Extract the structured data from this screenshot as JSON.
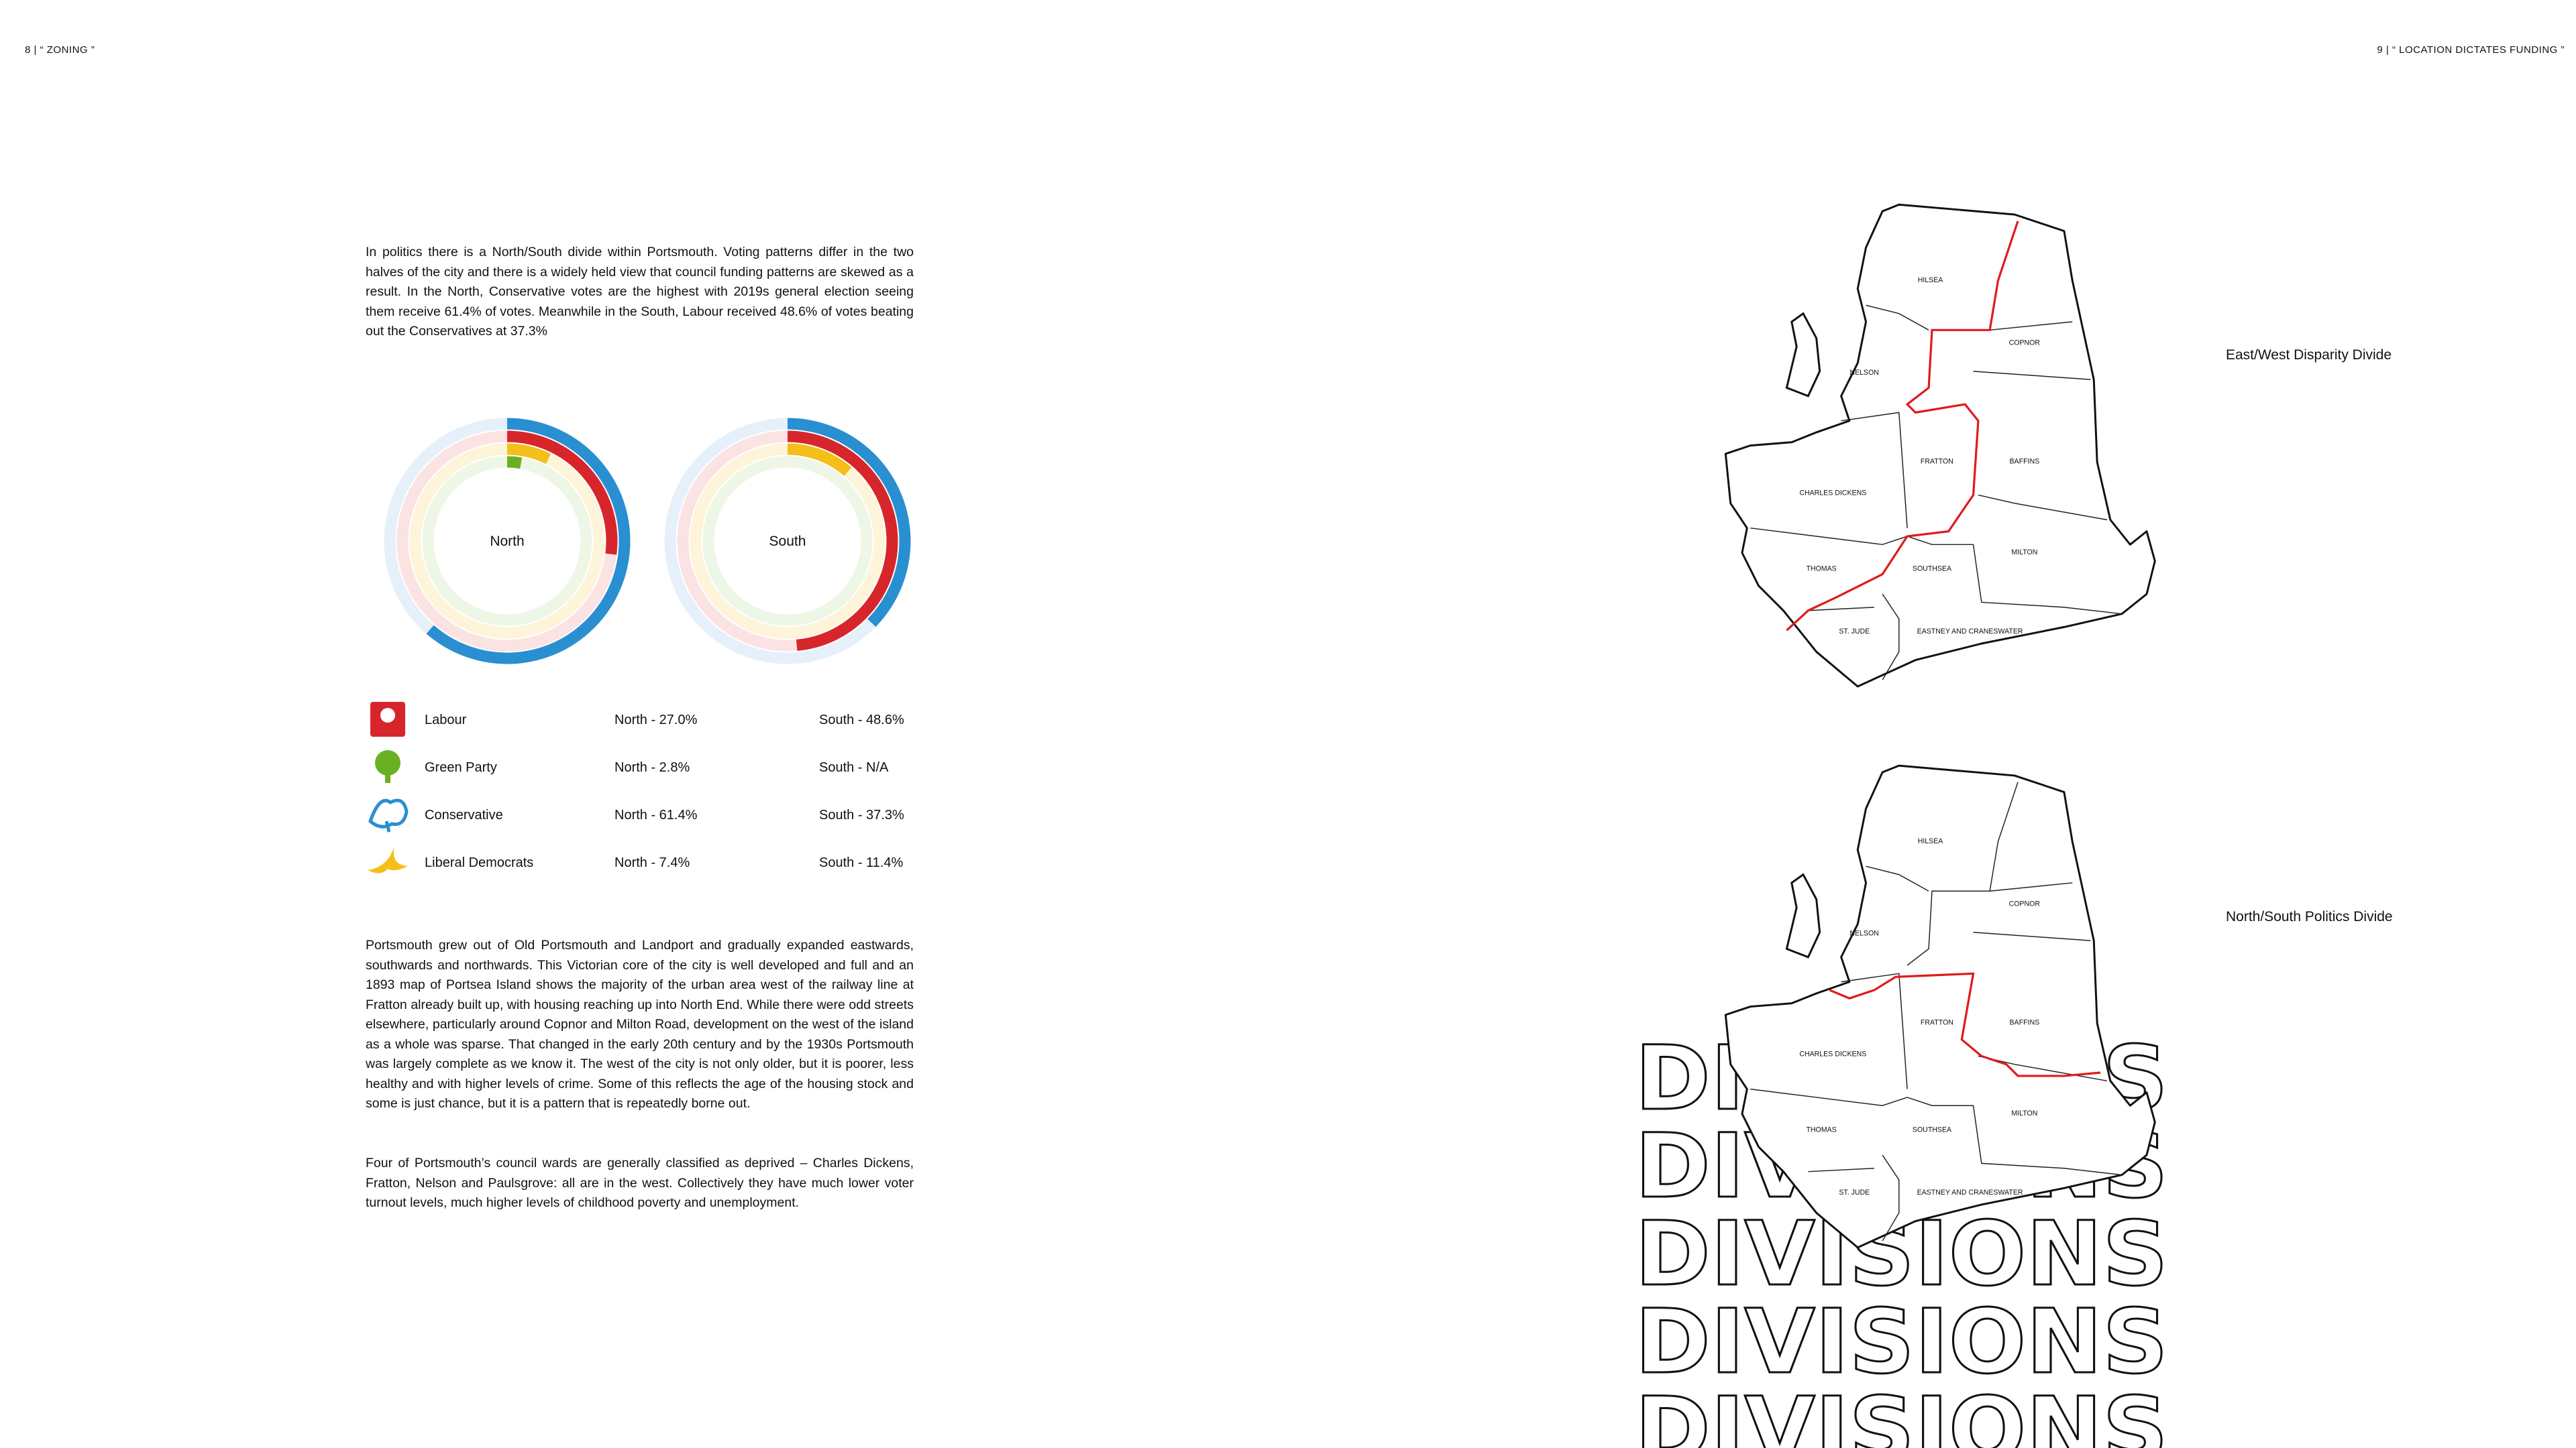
{
  "header": {
    "left": "8 | “ ZONING ”",
    "right": "9 | “ LOCATION DICTATES FUNDING ”"
  },
  "intro": "In politics there is a North/South divide within Portsmouth. Voting patterns differ in the two halves of the city and there is a widely held view that council funding patterns are skewed as a result. In the North, Conservative votes are the highest with 2019s general election seeing them receive 61.4% of votes. Meanwhile in the South, Labour received 48.6% of votes beating out the Conservatives at 37.3%",
  "chart_data": {
    "type": "radial-bar",
    "categories": [
      "North",
      "South"
    ],
    "ylim": [
      0,
      100
    ],
    "series": [
      {
        "name": "Labour",
        "color": "#d7262b",
        "values": [
          27.0,
          48.6
        ],
        "value_labels": [
          "North - 27.0%",
          "South - 48.6%"
        ]
      },
      {
        "name": "Green Party",
        "color": "#6ab023",
        "values": [
          2.8,
          null
        ],
        "value_labels": [
          "North - 2.8%",
          "South - N/A"
        ]
      },
      {
        "name": "Conservative",
        "color": "#2a8fd1",
        "values": [
          61.4,
          37.3
        ],
        "value_labels": [
          "North - 61.4%",
          "South - 37.3%"
        ]
      },
      {
        "name": "Liberal Democrats",
        "color": "#f5bf1a",
        "values": [
          7.4,
          11.4
        ],
        "value_labels": [
          "North - 7.4%",
          "South - 11.4%"
        ]
      }
    ]
  },
  "body": [
    "Portsmouth grew out of Old Portsmouth and Landport and gradually expanded eastwards, southwards and northwards. This Victorian core of the city is well developed and full and an 1893 map of Portsea Island shows the majority of the urban area west of the railway line at Fratton already built up, with housing reaching up into North End. While there were odd streets elsewhere, particularly around Copnor and Milton Road, development on the west of the island as a whole was sparse. That changed in the early 20th century and by the 1930s Portsmouth was largely complete as we know it. The west of the city is not only older, but it is poorer, less healthy and with higher levels of crime. Some of this reflects the age of the housing stock and some is just chance, but it is a pattern that is repeatedly borne out.",
    "Four of Portsmouth’s council wards are generally classified as deprived – Charles Dickens, Fratton, Nelson and Paulsgrove: all are in the west. Collectively they have much lower voter turnout levels, much higher levels of childhood poverty and unemployment."
  ],
  "maps": [
    {
      "caption": "East/West Disparity Divide",
      "wards": [
        "HILSEA",
        "COPNOR",
        "NELSON",
        "FRATTON",
        "BAFFINS",
        "CHARLES DICKENS",
        "MILTON",
        "THOMAS",
        "SOUTHSEA",
        "ST. JUDE",
        "EASTNEY AND CRANESWATER"
      ]
    },
    {
      "caption": "North/South Politics Divide",
      "wards": [
        "HILSEA",
        "COPNOR",
        "NELSON",
        "FRATTON",
        "BAFFINS",
        "CHARLES DICKENS",
        "MILTON",
        "THOMAS",
        "SOUTHSEA",
        "ST. JUDE",
        "EASTNEY AND CRANESWATER"
      ]
    }
  ],
  "background_words": [
    "DIVISIONS",
    "DIVISIONS",
    "DIVISIONS",
    "DIVISIONS",
    "DIVISIONS"
  ]
}
